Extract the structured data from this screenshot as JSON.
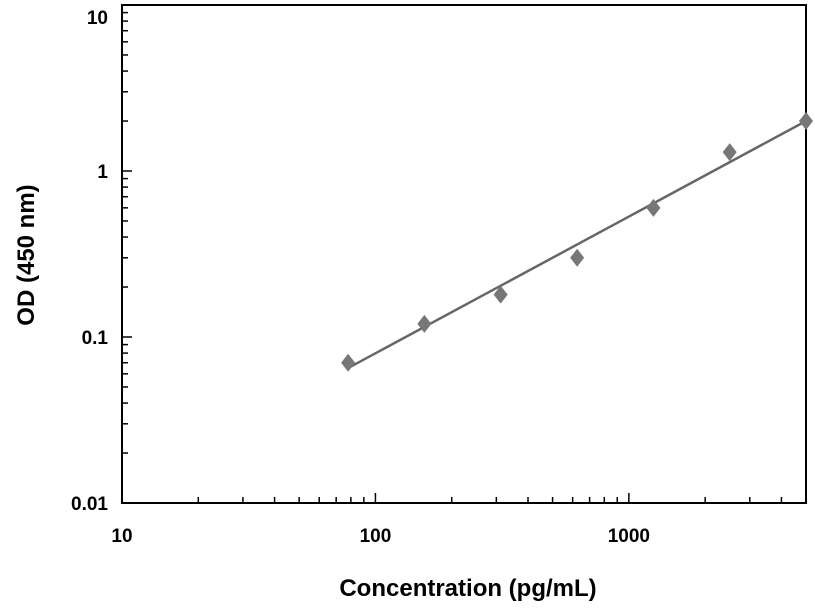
{
  "chart_data": {
    "type": "scatter",
    "title": "",
    "xlabel": "Concentration (pg/mL)",
    "ylabel": "OD (450 nm)",
    "x_scale": "log",
    "y_scale": "log",
    "xlim": [
      10,
      5000
    ],
    "ylim": [
      0.01,
      10
    ],
    "x_ticks": [
      10,
      100,
      1000
    ],
    "x_tick_labels": [
      "10",
      "100",
      "1000"
    ],
    "y_ticks": [
      0.01,
      0.1,
      1,
      10
    ],
    "y_tick_labels": [
      "0.01",
      "0.1",
      "1",
      "10"
    ],
    "grid": false,
    "series": [
      {
        "marker": "diamond",
        "color": "#777777",
        "x": [
          78,
          156,
          312,
          625,
          1250,
          2500,
          5000
        ],
        "y": [
          0.07,
          0.12,
          0.18,
          0.3,
          0.6,
          1.3,
          2.0
        ]
      }
    ],
    "trendline": {
      "color": "#666666",
      "x": [
        78,
        5000
      ],
      "y": [
        0.065,
        2.0
      ]
    }
  }
}
